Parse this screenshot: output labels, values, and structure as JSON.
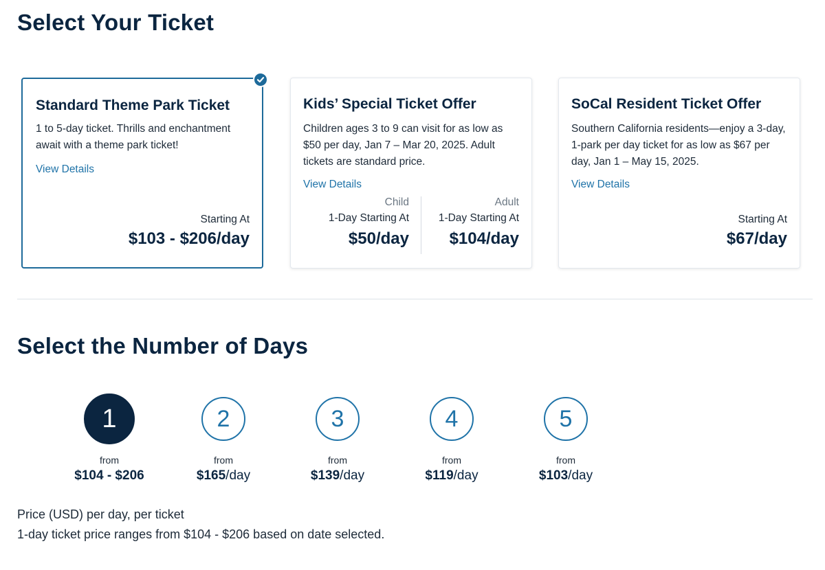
{
  "ticket_section": {
    "title": "Select Your Ticket",
    "cards": [
      {
        "title": "Standard Theme Park Ticket",
        "description": "1 to 5-day ticket. Thrills and enchantment await with a theme park ticket!",
        "link": "View Details",
        "starting_label": "Starting At",
        "price": "$103 - $206/day",
        "selected": true
      },
      {
        "title": "Kids’ Special Ticket Offer",
        "description": "Children ages 3 to 9 can visit for as low as $50 per day, Jan 7 – Mar 20, 2025. Adult tickets are standard price.",
        "link": "View Details",
        "child": {
          "label": "Child",
          "starting": "1-Day Starting At",
          "price": "$50/day"
        },
        "adult": {
          "label": "Adult",
          "starting": "1-Day Starting At",
          "price": "$104/day"
        },
        "selected": false
      },
      {
        "title": "SoCal Resident Ticket Offer",
        "description": "Southern California residents—enjoy a 3-day, 1-park per day ticket for as low as $67 per day, Jan 1 – May 15, 2025.",
        "link": "View Details",
        "starting_label": "Starting At",
        "price": "$67/day",
        "selected": false
      }
    ]
  },
  "days_section": {
    "title": "Select the Number of Days",
    "options": [
      {
        "number": "1",
        "from": "from",
        "price": "$104 - $206",
        "unit": "",
        "selected": true
      },
      {
        "number": "2",
        "from": "from",
        "price": "$165",
        "unit": "/day",
        "selected": false
      },
      {
        "number": "3",
        "from": "from",
        "price": "$139",
        "unit": "/day",
        "selected": false
      },
      {
        "number": "4",
        "from": "from",
        "price": "$119",
        "unit": "/day",
        "selected": false
      },
      {
        "number": "5",
        "from": "from",
        "price": "$103",
        "unit": "/day",
        "selected": false
      }
    ],
    "note_line1": "Price (USD) per day, per ticket",
    "note_line2": "1-day ticket price ranges from $104 - $206 based on date selected."
  },
  "colors": {
    "navy": "#0b2540",
    "accent": "#1f73a8",
    "selected_border": "#1d6a9a"
  },
  "icons": {
    "selected_badge": "checkmark-icon"
  }
}
